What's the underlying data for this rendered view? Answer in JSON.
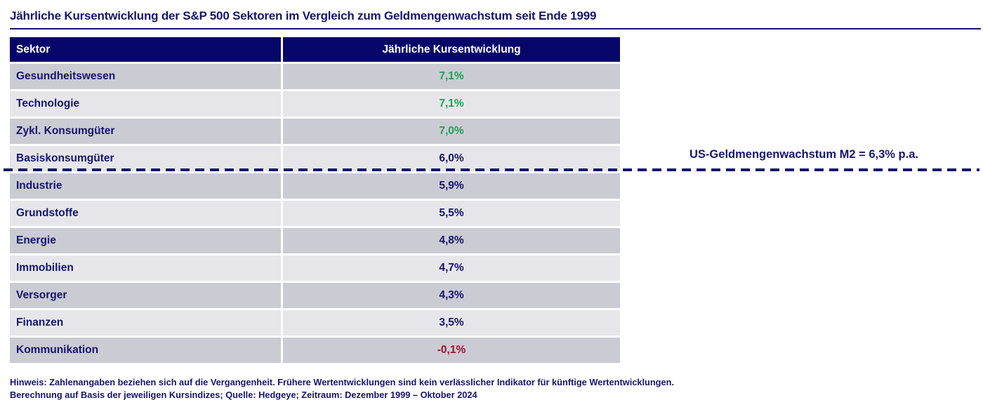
{
  "colors": {
    "navy": "#15156d",
    "header_bg": "#07076a",
    "row_dark": "#cbcbd3",
    "row_light": "#e6e6ea",
    "green": "#1ba351",
    "red": "#a31230"
  },
  "chart_data": {
    "type": "table",
    "title": "Jährliche Kursentwicklung der S&P 500 Sektoren im Vergleich zum Geldmengenwachstum seit Ende 1999",
    "columns": [
      "Sektor",
      "Jährliche Kursentwicklung"
    ],
    "rows": [
      {
        "sector": "Gesundheitswesen",
        "value": "7,1%",
        "value_num": 7.1,
        "color": "green"
      },
      {
        "sector": "Technologie",
        "value": "7,1%",
        "value_num": 7.1,
        "color": "green"
      },
      {
        "sector": "Zykl. Konsumgüter",
        "value": "7,0%",
        "value_num": 7.0,
        "color": "green"
      },
      {
        "sector": "Basiskonsumgüter",
        "value": "6,0%",
        "value_num": 6.0,
        "color": "navy"
      },
      {
        "sector": "Industrie",
        "value": "5,9%",
        "value_num": 5.9,
        "color": "navy"
      },
      {
        "sector": "Grundstoffe",
        "value": "5,5%",
        "value_num": 5.5,
        "color": "navy"
      },
      {
        "sector": "Energie",
        "value": "4,8%",
        "value_num": 4.8,
        "color": "navy"
      },
      {
        "sector": "Immobilien",
        "value": "4,7%",
        "value_num": 4.7,
        "color": "navy"
      },
      {
        "sector": "Versorger",
        "value": "4,3%",
        "value_num": 4.3,
        "color": "navy"
      },
      {
        "sector": "Finanzen",
        "value": "3,5%",
        "value_num": 3.5,
        "color": "navy"
      },
      {
        "sector": "Kommunikation",
        "value": "-0,1%",
        "value_num": -0.1,
        "color": "red"
      }
    ],
    "reference_line": {
      "label": "US-Geldmengenwachstum M2 = 6,3% p.a.",
      "value_num": 6.3,
      "style": "dashed"
    },
    "footnotes": [
      "Hinweis: Zahlenangaben beziehen sich auf die Vergangenheit. Frühere Wertentwicklungen sind kein verlässlicher Indikator für künftige Wertentwicklungen.",
      "Berechnung auf Basis der jeweiligen Kursindizes; Quelle: Hedgeye; Zeitraum: Dezember 1999 – Oktober 2024"
    ]
  }
}
